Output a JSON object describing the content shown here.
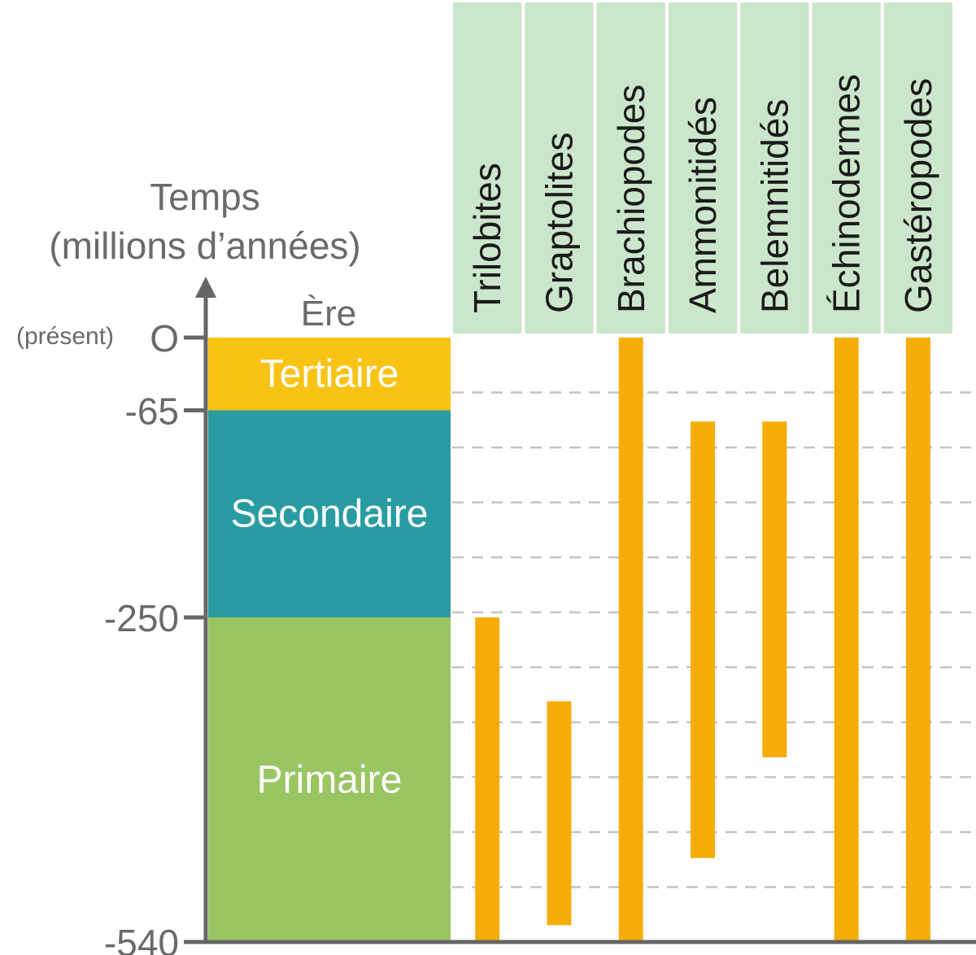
{
  "chart_data": {
    "type": "range-bar",
    "ylabel_line1": "Temps",
    "ylabel_line2": "(millions d’années)",
    "era_header": "Ère",
    "present_label": "(présent)",
    "ylim": [
      -540,
      0
    ],
    "ticks": [
      {
        "value": 0,
        "label": "O"
      },
      {
        "value": -65,
        "label": "-65"
      },
      {
        "value": -250,
        "label": "-250"
      },
      {
        "value": -540,
        "label": "-540"
      }
    ],
    "eras": [
      {
        "name": "Tertiaire",
        "from": 0,
        "to": -65,
        "color": "#f9c315"
      },
      {
        "name": "Secondaire",
        "from": -65,
        "to": -250,
        "color": "#289ca2"
      },
      {
        "name": "Primaire",
        "from": -250,
        "to": -540,
        "color": "#99c563"
      }
    ],
    "groups": [
      {
        "name": "Trilobites",
        "from": -250,
        "to": -540
      },
      {
        "name": "Graptolites",
        "from": -325,
        "to": -525
      },
      {
        "name": "Brachiopodes",
        "from": 0,
        "to": -540
      },
      {
        "name": "Ammonitidés",
        "from": -75,
        "to": -465
      },
      {
        "name": "Belemnitidés",
        "from": -75,
        "to": -375
      },
      {
        "name": "Échinodermes",
        "from": 0,
        "to": -540
      },
      {
        "name": "Gastéropodes",
        "from": 0,
        "to": -540
      }
    ],
    "grid": true,
    "bar_color": "#f6ad0a",
    "header_color": "#cce6cc"
  }
}
